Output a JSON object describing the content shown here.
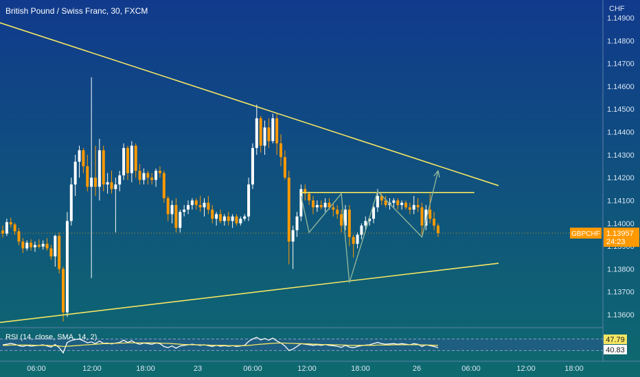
{
  "chart_data": {
    "type": "candlestick",
    "title": "British Pound / Swiss Franc, 30, FXCM",
    "symbol": "GBPCHF",
    "currency_label": "CHF",
    "last_price": "1.13957",
    "countdown": "24:23",
    "x_ticks": [
      "06:00",
      "12:00",
      "18:00",
      "23",
      "06:00",
      "12:00",
      "18:00",
      "26",
      "06:00",
      "12:00",
      "18:00"
    ],
    "y_ticks": [
      "1.14900",
      "1.14800",
      "1.14700",
      "1.14600",
      "1.14500",
      "1.14400",
      "1.14300",
      "1.14200",
      "1.14100",
      "1.14000",
      "1.13900",
      "1.13800",
      "1.13700",
      "1.13600"
    ],
    "ylim": [
      1.1355,
      1.1495
    ],
    "candles": [
      [
        1.13968,
        1.1399,
        1.13938,
        1.13955
      ],
      [
        1.13955,
        1.1402,
        1.13945,
        1.14005
      ],
      [
        1.14005,
        1.14025,
        1.1398,
        1.13995
      ],
      [
        1.13995,
        1.14002,
        1.1395,
        1.13965
      ],
      [
        1.13965,
        1.1398,
        1.13905,
        1.1392
      ],
      [
        1.1392,
        1.13935,
        1.1387,
        1.1389
      ],
      [
        1.1389,
        1.13925,
        1.1388,
        1.13915
      ],
      [
        1.13915,
        1.1393,
        1.1388,
        1.13895
      ],
      [
        1.13895,
        1.1392,
        1.13875,
        1.13905
      ],
      [
        1.13905,
        1.1393,
        1.1389,
        1.13898
      ],
      [
        1.13898,
        1.13925,
        1.13885,
        1.1391
      ],
      [
        1.1391,
        1.13935,
        1.1388,
        1.1389
      ],
      [
        1.1389,
        1.13905,
        1.1384,
        1.13855
      ],
      [
        1.13855,
        1.1395,
        1.1381,
        1.13945
      ],
      [
        1.13945,
        1.1396,
        1.1378,
        1.138
      ],
      [
        1.138,
        1.1381,
        1.1357,
        1.1361
      ],
      [
        1.1361,
        1.1405,
        1.1359,
        1.1401
      ],
      [
        1.1401,
        1.142,
        1.1399,
        1.1417
      ],
      [
        1.1417,
        1.143,
        1.1412,
        1.1427
      ],
      [
        1.1427,
        1.1434,
        1.142,
        1.1432
      ],
      [
        1.1432,
        1.1433,
        1.1422,
        1.1425
      ],
      [
        1.1425,
        1.143,
        1.1414,
        1.1416
      ],
      [
        1.1416,
        1.1464,
        1.1376,
        1.142
      ],
      [
        1.142,
        1.1434,
        1.1412,
        1.1416
      ],
      [
        1.1416,
        1.1437,
        1.141,
        1.1432
      ],
      [
        1.1432,
        1.1434,
        1.1414,
        1.1417
      ],
      [
        1.1417,
        1.1422,
        1.1413,
        1.1418
      ],
      [
        1.1418,
        1.1423,
        1.1413,
        1.1415
      ],
      [
        1.1415,
        1.142,
        1.1396,
        1.1417
      ],
      [
        1.1417,
        1.1423,
        1.1414,
        1.1421
      ],
      [
        1.1421,
        1.1435,
        1.1419,
        1.1433
      ],
      [
        1.1433,
        1.1434,
        1.1419,
        1.1422
      ],
      [
        1.1422,
        1.1436,
        1.1418,
        1.1434
      ],
      [
        1.1434,
        1.1435,
        1.142,
        1.1423
      ],
      [
        1.1423,
        1.1426,
        1.1417,
        1.1419
      ],
      [
        1.1419,
        1.1424,
        1.1417,
        1.1422
      ],
      [
        1.1422,
        1.1423,
        1.1417,
        1.142
      ],
      [
        1.142,
        1.1422,
        1.1417,
        1.1419
      ],
      [
        1.1419,
        1.1424,
        1.1416,
        1.1423
      ],
      [
        1.1423,
        1.1425,
        1.142,
        1.1422
      ],
      [
        1.1422,
        1.1423,
        1.1409,
        1.1411
      ],
      [
        1.1411,
        1.1412,
        1.1401,
        1.1404
      ],
      [
        1.1404,
        1.141,
        1.14,
        1.1408
      ],
      [
        1.1408,
        1.1411,
        1.1396,
        1.1398
      ],
      [
        1.1398,
        1.1406,
        1.1396,
        1.1405
      ],
      [
        1.1405,
        1.1408,
        1.1403,
        1.1406
      ],
      [
        1.1406,
        1.141,
        1.1404,
        1.1408
      ],
      [
        1.1408,
        1.1411,
        1.1406,
        1.141
      ],
      [
        1.141,
        1.1411,
        1.1406,
        1.1408
      ],
      [
        1.1408,
        1.1412,
        1.1405,
        1.1407
      ],
      [
        1.1407,
        1.1411,
        1.1403,
        1.1409
      ],
      [
        1.1409,
        1.1412,
        1.1404,
        1.1406
      ],
      [
        1.1406,
        1.1408,
        1.14,
        1.1402
      ],
      [
        1.1402,
        1.1405,
        1.1399,
        1.1404
      ],
      [
        1.1404,
        1.1406,
        1.14,
        1.1401
      ],
      [
        1.1401,
        1.1404,
        1.1399,
        1.1403
      ],
      [
        1.1403,
        1.1405,
        1.1399,
        1.1401
      ],
      [
        1.1401,
        1.1404,
        1.1398,
        1.1403
      ],
      [
        1.1403,
        1.1404,
        1.1399,
        1.14
      ],
      [
        1.14,
        1.1403,
        1.1399,
        1.1402
      ],
      [
        1.1402,
        1.1404,
        1.1401,
        1.1403
      ],
      [
        1.1403,
        1.142,
        1.1401,
        1.1417
      ],
      [
        1.1417,
        1.1435,
        1.1415,
        1.1433
      ],
      [
        1.1433,
        1.1452,
        1.143,
        1.1446
      ],
      [
        1.1446,
        1.1447,
        1.1431,
        1.1434
      ],
      [
        1.1434,
        1.1445,
        1.143,
        1.1442
      ],
      [
        1.1442,
        1.1446,
        1.1433,
        1.1436
      ],
      [
        1.1436,
        1.1448,
        1.1435,
        1.1446
      ],
      [
        1.1446,
        1.1448,
        1.143,
        1.1435
      ],
      [
        1.1435,
        1.1439,
        1.1425,
        1.1429
      ],
      [
        1.1429,
        1.1432,
        1.1419,
        1.142
      ],
      [
        1.142,
        1.1423,
        1.1382,
        1.1392
      ],
      [
        1.1392,
        1.1399,
        1.138,
        1.1397
      ],
      [
        1.1397,
        1.1405,
        1.1394,
        1.1403
      ],
      [
        1.1403,
        1.1417,
        1.1401,
        1.1415
      ],
      [
        1.1415,
        1.1417,
        1.141,
        1.1413
      ],
      [
        1.1413,
        1.1414,
        1.1408,
        1.141
      ],
      [
        1.141,
        1.1412,
        1.1404,
        1.1407
      ],
      [
        1.1407,
        1.141,
        1.1405,
        1.1408
      ],
      [
        1.1408,
        1.141,
        1.1406,
        1.1407
      ],
      [
        1.1407,
        1.1411,
        1.1405,
        1.1409
      ],
      [
        1.1409,
        1.1411,
        1.1406,
        1.1407
      ],
      [
        1.1407,
        1.1409,
        1.1403,
        1.1406
      ],
      [
        1.1406,
        1.1408,
        1.1402,
        1.1404
      ],
      [
        1.1404,
        1.1406,
        1.1396,
        1.1399
      ],
      [
        1.1399,
        1.1408,
        1.1397,
        1.1406
      ],
      [
        1.1406,
        1.1408,
        1.139,
        1.1394
      ],
      [
        1.1394,
        1.1395,
        1.1385,
        1.1391
      ],
      [
        1.1391,
        1.1396,
        1.1389,
        1.1395
      ],
      [
        1.1395,
        1.14,
        1.1393,
        1.1399
      ],
      [
        1.1399,
        1.1403,
        1.1397,
        1.1401
      ],
      [
        1.1401,
        1.1403,
        1.1399,
        1.1402
      ],
      [
        1.1402,
        1.1409,
        1.14,
        1.1407
      ],
      [
        1.1407,
        1.1415,
        1.1405,
        1.1412
      ],
      [
        1.1412,
        1.1413,
        1.1408,
        1.141
      ],
      [
        1.141,
        1.1412,
        1.1407,
        1.1408
      ],
      [
        1.1408,
        1.1411,
        1.1406,
        1.1409
      ],
      [
        1.1409,
        1.1411,
        1.1407,
        1.141
      ],
      [
        1.141,
        1.1411,
        1.1406,
        1.1408
      ],
      [
        1.1408,
        1.141,
        1.1406,
        1.1409
      ],
      [
        1.1409,
        1.141,
        1.1406,
        1.1407
      ],
      [
        1.1407,
        1.1409,
        1.1404,
        1.1406
      ],
      [
        1.1406,
        1.1412,
        1.1404,
        1.1408
      ],
      [
        1.1408,
        1.1411,
        1.1405,
        1.1407
      ],
      [
        1.1407,
        1.1409,
        1.1395,
        1.1399
      ],
      [
        1.1399,
        1.1408,
        1.1397,
        1.1406
      ],
      [
        1.1406,
        1.1413,
        1.14,
        1.1402
      ],
      [
        1.1402,
        1.1405,
        1.1397,
        1.1399
      ],
      [
        1.1399,
        1.14,
        1.1394,
        1.13957
      ]
    ],
    "rsi": {
      "label": "RSI (14, close, SMA, 14, 2)",
      "rsi_value": "40.83",
      "sma_value": "47.79",
      "overbought": 70,
      "oversold": 30,
      "ylim": [
        0,
        100
      ],
      "values": [
        50,
        52,
        55,
        52,
        47,
        44,
        48,
        45,
        47,
        48,
        50,
        46,
        42,
        51,
        40,
        22,
        58,
        65,
        68,
        70,
        64,
        57,
        60,
        54,
        63,
        55,
        56,
        53,
        56,
        58,
        66,
        58,
        64,
        56,
        52,
        56,
        54,
        52,
        56,
        54,
        44,
        40,
        46,
        38,
        46,
        48,
        50,
        52,
        50,
        48,
        50,
        47,
        44,
        48,
        45,
        47,
        45,
        47,
        44,
        46,
        48,
        62,
        70,
        76,
        67,
        72,
        66,
        73,
        63,
        56,
        46,
        30,
        35,
        44,
        54,
        52,
        50,
        48,
        50,
        48,
        51,
        48,
        47,
        45,
        41,
        48,
        42,
        40,
        44,
        47,
        49,
        50,
        54,
        58,
        54,
        52,
        53,
        54,
        52,
        54,
        52,
        50,
        54,
        52,
        44,
        50,
        47,
        44,
        40
      ],
      "sma": [
        48,
        48,
        49,
        49,
        49,
        49,
        49,
        49,
        48,
        48,
        48,
        48,
        47,
        47,
        46,
        44,
        45,
        46,
        47,
        48,
        49,
        50,
        51,
        52,
        53,
        54,
        54,
        55,
        55,
        56,
        56,
        57,
        57,
        57,
        57,
        57,
        57,
        57,
        57,
        56,
        55,
        55,
        54,
        53,
        52,
        51,
        51,
        50,
        50,
        50,
        49,
        49,
        48,
        48,
        48,
        48,
        47,
        47,
        47,
        47,
        47,
        48,
        49,
        51,
        52,
        53,
        54,
        55,
        56,
        56,
        56,
        55,
        55,
        54,
        54,
        53,
        53,
        52,
        52,
        51,
        51,
        51,
        50,
        50,
        49,
        49,
        48,
        48,
        48,
        48,
        48,
        48,
        48,
        49,
        49,
        49,
        49,
        50,
        50,
        50,
        50,
        50,
        50,
        50,
        50,
        49,
        49,
        48,
        48
      ]
    },
    "trendlines": [
      {
        "name": "resistance",
        "points": [
          [
            -1,
            1.1488
          ],
          [
            123,
            1.14165
          ]
        ]
      },
      {
        "name": "support",
        "points": [
          [
            -1,
            1.13565
          ],
          [
            123,
            1.13825
          ]
        ]
      },
      {
        "name": "neckline",
        "points": [
          [
            74,
            1.14135
          ],
          [
            117,
            1.14135
          ]
        ]
      }
    ],
    "pattern_path": [
      [
        74,
        1.1412
      ],
      [
        76,
        1.1396
      ],
      [
        84,
        1.1413
      ],
      [
        86,
        1.1374
      ],
      [
        93,
        1.1414
      ],
      [
        104,
        1.1394
      ],
      [
        108,
        1.1423
      ]
    ],
    "colors": {
      "up": "#ffffff",
      "down": "#ff9900",
      "trendline": "#f5e663",
      "pattern": "#8fb59a",
      "rsi_line": "#ffffff",
      "rsi_sma": "#f5e663",
      "price_tag": "#ff9900",
      "background_top": "#113a8c",
      "background_bottom": "#0e6a6e"
    }
  }
}
